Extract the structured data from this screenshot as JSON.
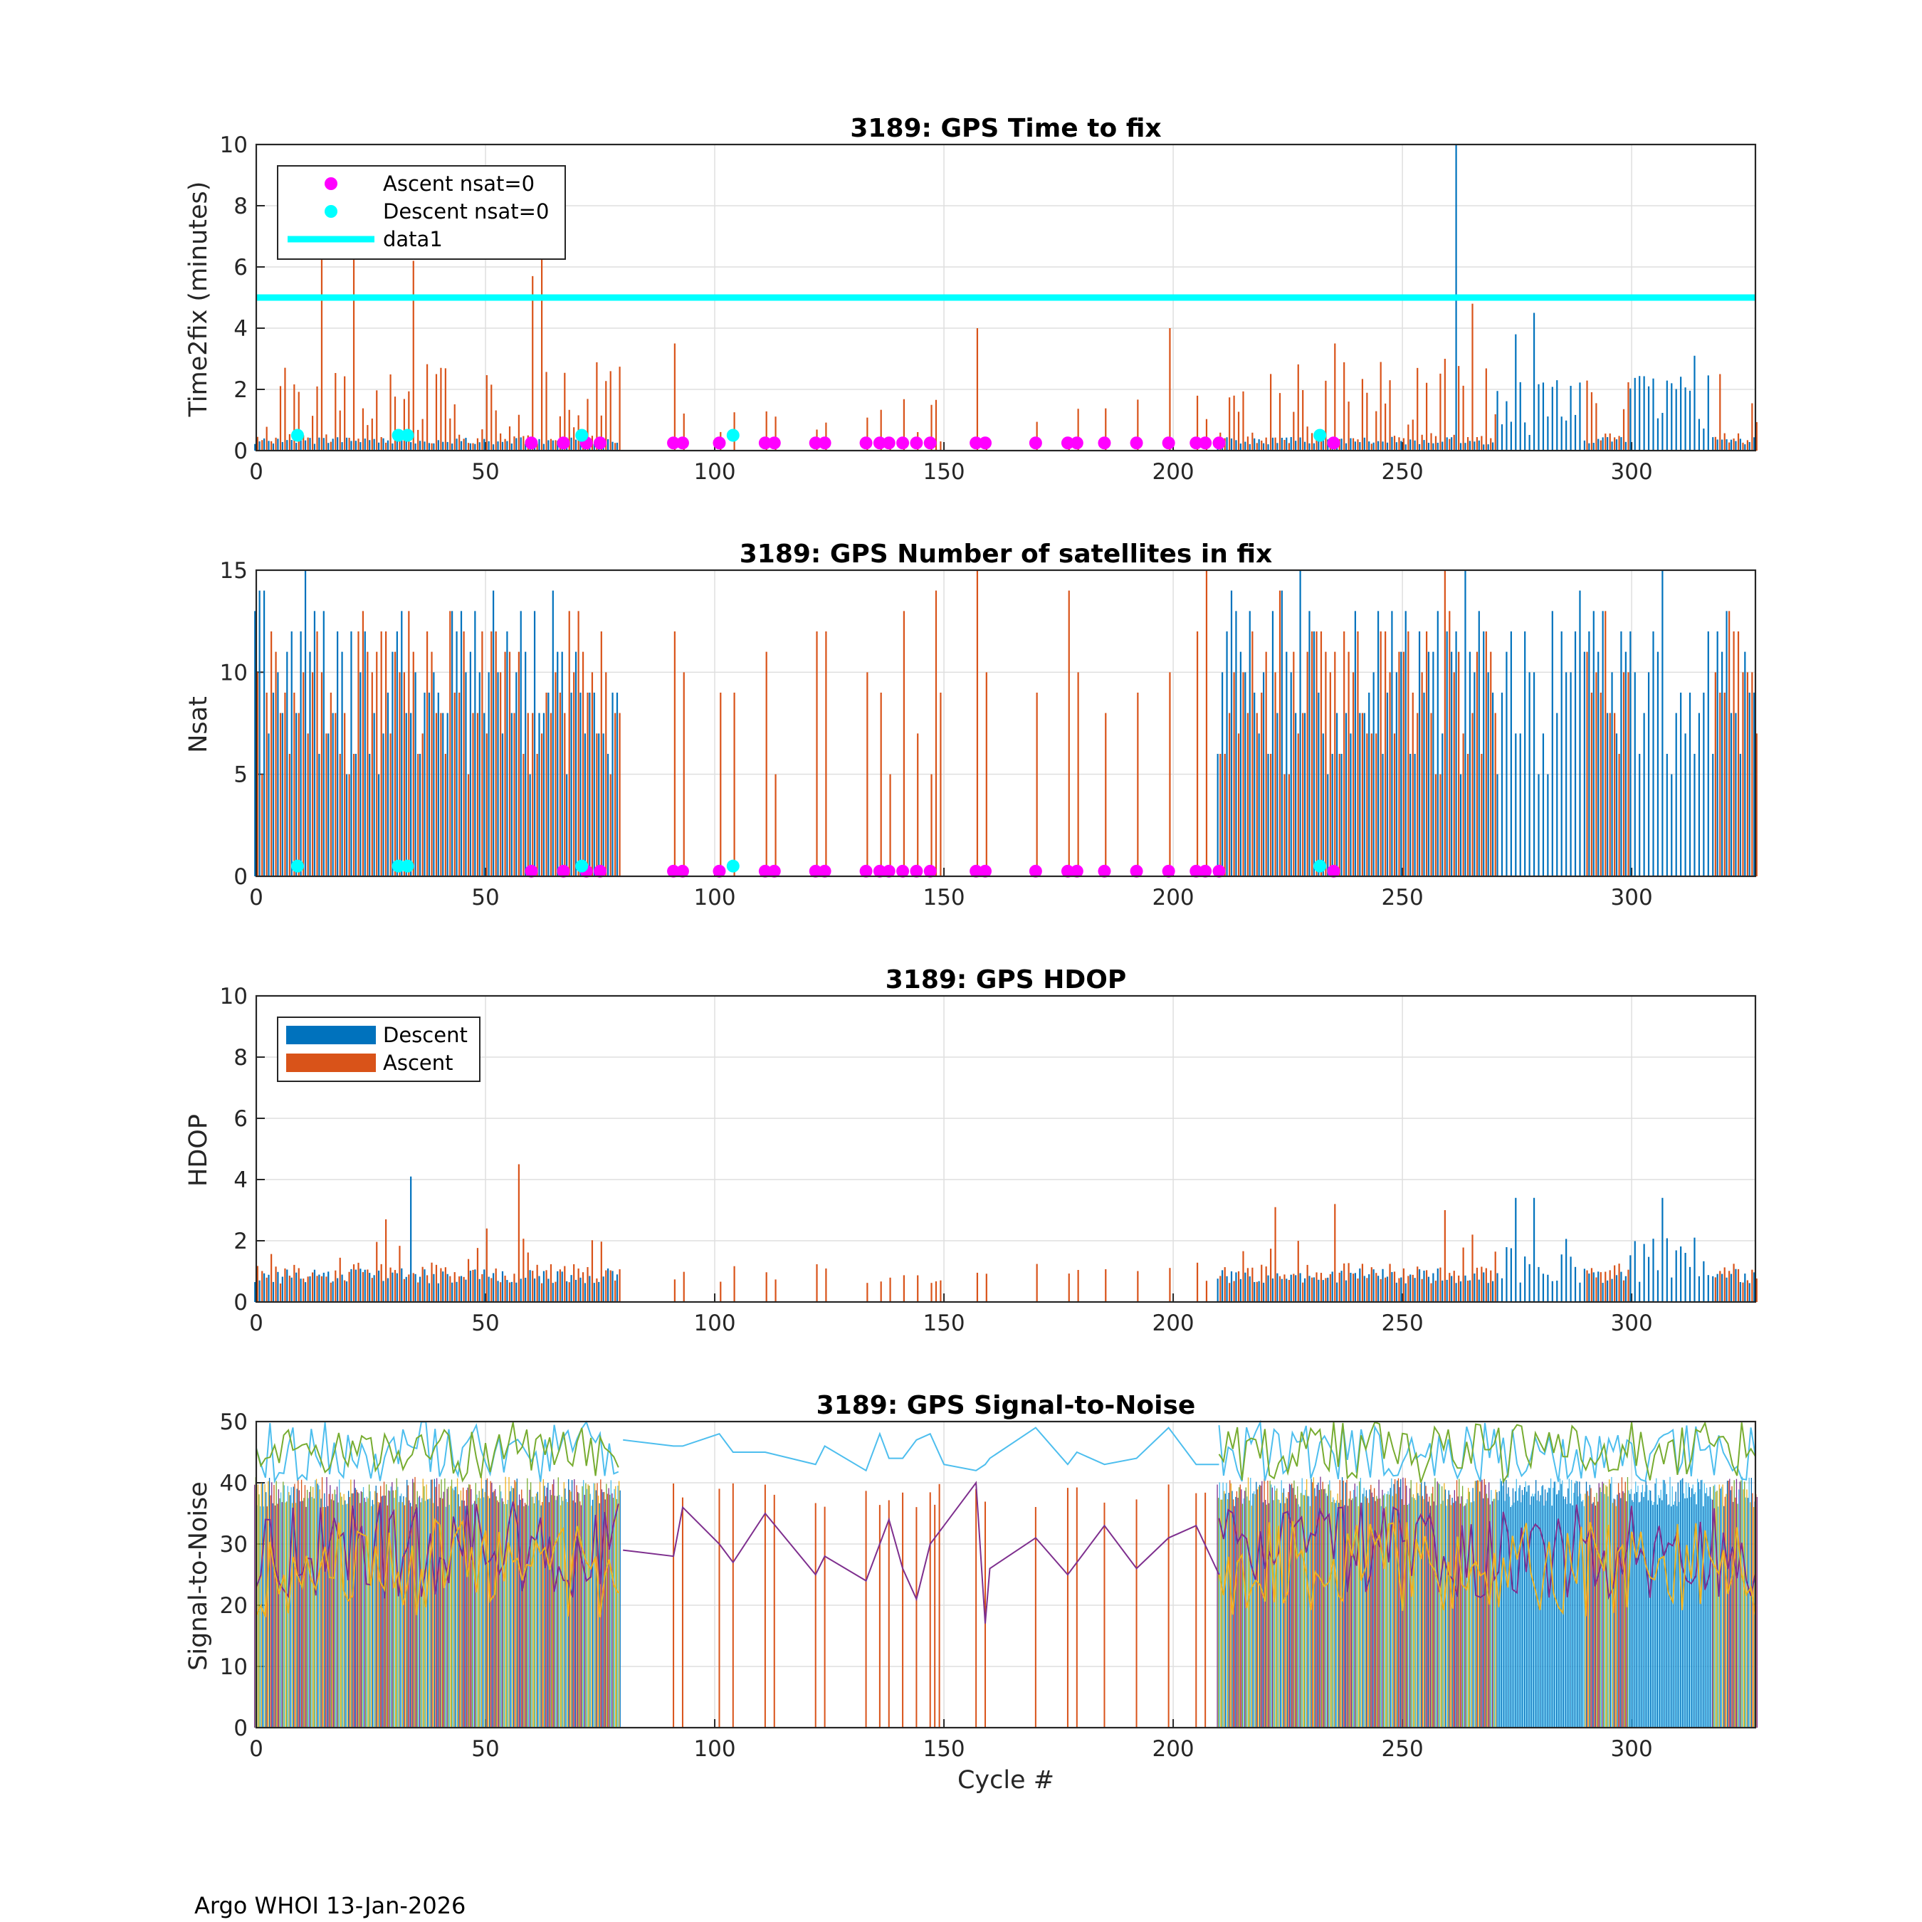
{
  "colors": {
    "descent": "#0072BD",
    "ascent": "#D95319",
    "ascent_zero": "#FF00FF",
    "descent_zero": "#00FFFF",
    "reference_line": "#00FFFF",
    "snr_series": [
      "#7E2F8E",
      "#77AC30",
      "#4DBEEE",
      "#EDB120",
      "#0072BD",
      "#D95319"
    ]
  },
  "footer": "Argo WHOI 13-Jan-2026",
  "chart_data": [
    {
      "id": "t2f",
      "type": "bar",
      "title": "3189: GPS Time to fix",
      "xlabel": "",
      "ylabel": "Time2fix (minutes)",
      "xlim": [
        0,
        327
      ],
      "ylim": [
        0,
        10
      ],
      "xticks": [
        0,
        50,
        100,
        150,
        200,
        250,
        300
      ],
      "yticks": [
        0,
        2,
        4,
        6,
        8,
        10
      ],
      "grid": true,
      "legend": {
        "position": "top-left",
        "entries": [
          {
            "label": "Ascent nsat=0",
            "kind": "marker",
            "color_key": "ascent_zero"
          },
          {
            "label": "Descent nsat=0",
            "kind": "marker",
            "color_key": "descent_zero"
          },
          {
            "label": "data1",
            "kind": "line",
            "color_key": "reference_line"
          }
        ]
      },
      "reference_line": {
        "y": 5,
        "label": "data1"
      },
      "series": [
        {
          "name": "Descent",
          "color_key": "descent",
          "note": "bars per cycle, mostly ~0.3 with peaks up to 10 near cycle 262",
          "highlights": [
            [
              262,
              10
            ],
            [
              275,
              3.8
            ],
            [
              279,
              4.5
            ],
            [
              284,
              2.3
            ],
            [
              304,
              2.1
            ],
            [
              309,
              2.2
            ],
            [
              314,
              3.1
            ]
          ]
        },
        {
          "name": "Ascent",
          "color_key": "ascent",
          "note": "bars per cycle, mostly 0.3-3 with peaks",
          "highlights": [
            [
              14,
              6.4
            ],
            [
              21,
              6.4
            ],
            [
              34,
              6.2
            ],
            [
              60,
              5.7
            ],
            [
              62,
              6.4
            ],
            [
              91,
              3.5
            ],
            [
              157,
              4.0
            ],
            [
              199,
              4.0
            ],
            [
              235,
              3.5
            ],
            [
              259,
              3.0
            ],
            [
              265,
              4.8
            ]
          ]
        }
      ],
      "markers": {
        "ascent_nsat0": {
          "y": 0.25,
          "x": [
            60,
            67,
            72,
            75,
            91,
            93,
            101,
            111,
            113,
            122,
            124,
            133,
            136,
            138,
            141,
            144,
            147,
            157,
            159,
            170,
            177,
            179,
            185,
            192,
            199,
            205,
            207,
            210,
            235
          ]
        },
        "descent_nsat0": {
          "y": 0.5,
          "x": [
            9,
            31,
            33,
            71,
            104,
            232
          ]
        }
      }
    },
    {
      "id": "nsat",
      "type": "bar",
      "title": "3189: GPS Number of satellites in fix",
      "xlabel": "",
      "ylabel": "Nsat",
      "xlim": [
        0,
        327
      ],
      "ylim": [
        0,
        15
      ],
      "xticks": [
        0,
        50,
        100,
        150,
        200,
        250,
        300
      ],
      "yticks": [
        0,
        5,
        10,
        15
      ],
      "grid": true,
      "series": [
        {
          "name": "Descent",
          "color_key": "descent",
          "note": "bars per cycle, typically 5-14"
        },
        {
          "name": "Ascent",
          "color_key": "ascent",
          "note": "bars per cycle, typically 5-12, gaps 80-210"
        }
      ],
      "markers": {
        "ascent_nsat0": {
          "y": 0.25,
          "x": [
            60,
            67,
            72,
            75,
            91,
            93,
            101,
            111,
            113,
            122,
            124,
            133,
            136,
            138,
            141,
            144,
            147,
            157,
            159,
            170,
            177,
            179,
            185,
            192,
            199,
            205,
            207,
            210,
            235
          ]
        },
        "descent_nsat0": {
          "y": 0.5,
          "x": [
            9,
            31,
            33,
            71,
            104,
            232
          ]
        }
      }
    },
    {
      "id": "hdop",
      "type": "bar",
      "title": "3189: GPS HDOP",
      "xlabel": "",
      "ylabel": "HDOP",
      "xlim": [
        0,
        327
      ],
      "ylim": [
        0,
        10
      ],
      "xticks": [
        0,
        50,
        100,
        150,
        200,
        250,
        300
      ],
      "yticks": [
        0,
        2,
        4,
        6,
        8,
        10
      ],
      "grid": true,
      "legend": {
        "position": "top-left",
        "entries": [
          {
            "label": "Descent",
            "kind": "patch",
            "color_key": "descent"
          },
          {
            "label": "Ascent",
            "kind": "patch",
            "color_key": "ascent"
          }
        ]
      },
      "series": [
        {
          "name": "Descent",
          "color_key": "descent",
          "note": "mostly 0.6-1.2",
          "highlights": [
            [
              34,
              4.1
            ],
            [
              275,
              3.4
            ],
            [
              279,
              3.4
            ],
            [
              307,
              3.4
            ]
          ]
        },
        {
          "name": "Ascent",
          "color_key": "ascent",
          "note": "mostly 0.6-1.2",
          "highlights": [
            [
              57,
              4.5
            ],
            [
              28,
              2.7
            ],
            [
              50,
              2.4
            ],
            [
              222,
              3.1
            ],
            [
              235,
              3.2
            ],
            [
              259,
              3.0
            ],
            [
              265,
              2.2
            ]
          ]
        }
      ]
    },
    {
      "id": "snr",
      "type": "line",
      "title": "3189: GPS Signal-to-Noise",
      "xlabel": "Cycle #",
      "ylabel": "Signal-to-Noise",
      "xlim": [
        0,
        327
      ],
      "ylim": [
        0,
        50
      ],
      "xticks": [
        0,
        50,
        100,
        150,
        200,
        250,
        300
      ],
      "yticks": [
        0,
        10,
        20,
        30,
        40,
        50
      ],
      "grid": true,
      "series": [
        {
          "name": "max",
          "color_index": 2,
          "note": "light blue line ~42-50"
        },
        {
          "name": "high",
          "color_index": 1,
          "note": "green line ~40-50"
        },
        {
          "name": "mean",
          "color_index": 0,
          "note": "purple line ~20-40"
        },
        {
          "name": "low",
          "color_index": 3,
          "note": "yellow line ~15-35"
        }
      ],
      "bars": {
        "note": "vertical bars per cycle, mostly reaching ~38-40 (ascent orange, descent blue, others multicolored)"
      },
      "sparse_points": [
        [
          80,
          29
        ],
        [
          91,
          28
        ],
        [
          93,
          36
        ],
        [
          101,
          30
        ],
        [
          104,
          27
        ],
        [
          111,
          35
        ],
        [
          122,
          25
        ],
        [
          124,
          28
        ],
        [
          133,
          24
        ],
        [
          136,
          30
        ],
        [
          138,
          34
        ],
        [
          141,
          26
        ],
        [
          144,
          21
        ],
        [
          147,
          30
        ],
        [
          150,
          33
        ],
        [
          157,
          40
        ],
        [
          159,
          17
        ],
        [
          160,
          26
        ],
        [
          170,
          31
        ],
        [
          177,
          25
        ],
        [
          179,
          27
        ],
        [
          185,
          33
        ],
        [
          192,
          26
        ],
        [
          199,
          31
        ],
        [
          205,
          33
        ],
        [
          210,
          25
        ]
      ]
    }
  ]
}
